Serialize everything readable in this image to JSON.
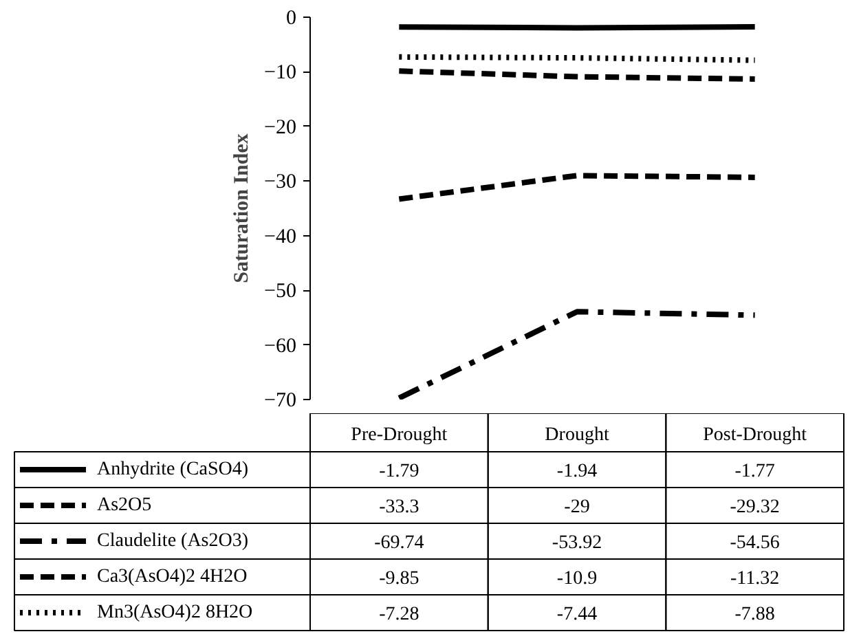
{
  "chart_data": {
    "type": "line",
    "ylabel": "Saturation Index",
    "categories": [
      "Pre-Drought",
      "Drought",
      "Post-Drought"
    ],
    "ylim": [
      -70,
      0
    ],
    "yticks": [
      0,
      -10,
      -20,
      -30,
      -40,
      -50,
      -60,
      -70
    ],
    "data_labels": true,
    "grid": false,
    "legend": "bottom",
    "marker": "none",
    "series": [
      {
        "name": "Anhydrite (CaSO4)",
        "color": "#000000",
        "line_style": "solid",
        "values": [
          -1.79,
          -1.94,
          -1.77
        ]
      },
      {
        "name": "As2O5",
        "color": "#000000",
        "line_style": "dashed",
        "values": [
          -33.3,
          -29,
          -29.32
        ]
      },
      {
        "name": "Claudelite (As2O3)",
        "color": "#000000",
        "line_style": "dashdot",
        "values": [
          -69.74,
          -53.92,
          -54.56
        ]
      },
      {
        "name": "Ca3(AsO4)2 4H2O",
        "color": "#000000",
        "line_style": "dashed",
        "values": [
          -9.85,
          -10.9,
          -11.32
        ]
      },
      {
        "name": "Mn3(AsO4)2 8H2O",
        "color": "#000000",
        "line_style": "dotted",
        "values": [
          -7.28,
          -7.44,
          -7.88
        ]
      }
    ]
  }
}
